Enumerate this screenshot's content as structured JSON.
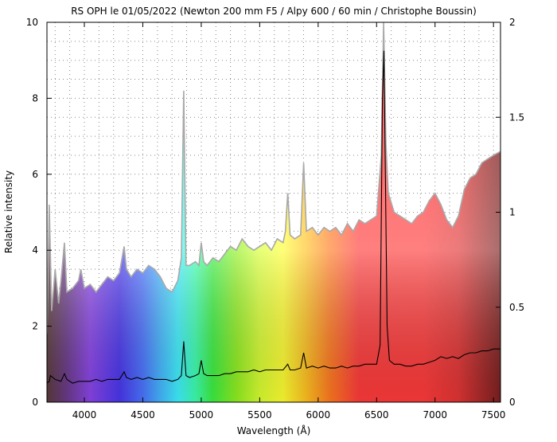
{
  "chart_data": {
    "type": "line",
    "title": "RS OPH le 01/05/2022 (Newton 200 mm F5 / Alpy 600 / 60 min / Christophe Boussin)",
    "xlabel": "Wavelength (Å)",
    "ylabel": "Relative intensity",
    "xlim": [
      3680,
      7560
    ],
    "ylim_left": [
      0,
      10
    ],
    "ylim_right": [
      0,
      2
    ],
    "x_ticks": [
      4000,
      4500,
      5000,
      5500,
      6000,
      6500,
      7000,
      7500
    ],
    "y_ticks_left": [
      0,
      2,
      4,
      6,
      8,
      10
    ],
    "y_ticks_right": [
      0,
      0.5,
      1,
      1.5,
      2
    ],
    "grid": true,
    "background": "rainbow spectrum colored fill under gray curve",
    "series": [
      {
        "color": "#a9a9a9",
        "axis": "left",
        "points": [
          [
            3680,
            1.8
          ],
          [
            3700,
            5.2
          ],
          [
            3720,
            2.4
          ],
          [
            3750,
            3.5
          ],
          [
            3780,
            2.6
          ],
          [
            3800,
            3.2
          ],
          [
            3830,
            4.2
          ],
          [
            3850,
            2.9
          ],
          [
            3900,
            3.0
          ],
          [
            3950,
            3.2
          ],
          [
            3970,
            3.5
          ],
          [
            4000,
            3.0
          ],
          [
            4050,
            3.1
          ],
          [
            4100,
            2.9
          ],
          [
            4150,
            3.1
          ],
          [
            4200,
            3.3
          ],
          [
            4250,
            3.2
          ],
          [
            4300,
            3.4
          ],
          [
            4340,
            4.1
          ],
          [
            4360,
            3.5
          ],
          [
            4400,
            3.3
          ],
          [
            4450,
            3.5
          ],
          [
            4500,
            3.4
          ],
          [
            4550,
            3.6
          ],
          [
            4600,
            3.5
          ],
          [
            4650,
            3.3
          ],
          [
            4700,
            3.0
          ],
          [
            4750,
            2.9
          ],
          [
            4800,
            3.2
          ],
          [
            4830,
            3.8
          ],
          [
            4850,
            8.2
          ],
          [
            4870,
            3.6
          ],
          [
            4900,
            3.6
          ],
          [
            4950,
            3.7
          ],
          [
            4980,
            3.6
          ],
          [
            5000,
            4.2
          ],
          [
            5020,
            3.7
          ],
          [
            5050,
            3.6
          ],
          [
            5100,
            3.8
          ],
          [
            5150,
            3.7
          ],
          [
            5200,
            3.9
          ],
          [
            5250,
            4.1
          ],
          [
            5300,
            4.0
          ],
          [
            5350,
            4.3
          ],
          [
            5400,
            4.1
          ],
          [
            5450,
            4.0
          ],
          [
            5500,
            4.1
          ],
          [
            5550,
            4.2
          ],
          [
            5600,
            4.0
          ],
          [
            5650,
            4.3
          ],
          [
            5700,
            4.2
          ],
          [
            5720,
            4.5
          ],
          [
            5740,
            5.5
          ],
          [
            5760,
            4.4
          ],
          [
            5800,
            4.3
          ],
          [
            5850,
            4.4
          ],
          [
            5876,
            6.3
          ],
          [
            5900,
            4.5
          ],
          [
            5950,
            4.6
          ],
          [
            6000,
            4.4
          ],
          [
            6050,
            4.6
          ],
          [
            6100,
            4.5
          ],
          [
            6150,
            4.6
          ],
          [
            6200,
            4.4
          ],
          [
            6250,
            4.7
          ],
          [
            6300,
            4.5
          ],
          [
            6350,
            4.8
          ],
          [
            6400,
            4.7
          ],
          [
            6450,
            4.8
          ],
          [
            6500,
            4.9
          ],
          [
            6540,
            6.5
          ],
          [
            6560,
            10.0
          ],
          [
            6580,
            6.8
          ],
          [
            6600,
            5.5
          ],
          [
            6650,
            5.0
          ],
          [
            6700,
            4.9
          ],
          [
            6750,
            4.8
          ],
          [
            6800,
            4.7
          ],
          [
            6850,
            4.9
          ],
          [
            6900,
            5.0
          ],
          [
            6950,
            5.3
          ],
          [
            7000,
            5.5
          ],
          [
            7050,
            5.2
          ],
          [
            7100,
            4.8
          ],
          [
            7150,
            4.6
          ],
          [
            7200,
            4.9
          ],
          [
            7250,
            5.6
          ],
          [
            7300,
            5.9
          ],
          [
            7350,
            6.0
          ],
          [
            7400,
            6.3
          ],
          [
            7450,
            6.4
          ],
          [
            7500,
            6.5
          ],
          [
            7560,
            6.6
          ]
        ]
      },
      {
        "color": "#000000",
        "axis": "right",
        "points": [
          [
            3680,
            0.1
          ],
          [
            3700,
            0.11
          ],
          [
            3710,
            0.14
          ],
          [
            3750,
            0.12
          ],
          [
            3800,
            0.11
          ],
          [
            3830,
            0.15
          ],
          [
            3850,
            0.12
          ],
          [
            3900,
            0.1
          ],
          [
            3950,
            0.11
          ],
          [
            4000,
            0.11
          ],
          [
            4050,
            0.11
          ],
          [
            4100,
            0.12
          ],
          [
            4150,
            0.11
          ],
          [
            4200,
            0.12
          ],
          [
            4250,
            0.12
          ],
          [
            4300,
            0.12
          ],
          [
            4340,
            0.16
          ],
          [
            4360,
            0.13
          ],
          [
            4400,
            0.12
          ],
          [
            4450,
            0.13
          ],
          [
            4500,
            0.12
          ],
          [
            4550,
            0.13
          ],
          [
            4600,
            0.12
          ],
          [
            4650,
            0.12
          ],
          [
            4700,
            0.12
          ],
          [
            4750,
            0.11
          ],
          [
            4800,
            0.12
          ],
          [
            4830,
            0.14
          ],
          [
            4850,
            0.32
          ],
          [
            4870,
            0.14
          ],
          [
            4900,
            0.13
          ],
          [
            4950,
            0.14
          ],
          [
            4980,
            0.15
          ],
          [
            5000,
            0.22
          ],
          [
            5020,
            0.15
          ],
          [
            5050,
            0.14
          ],
          [
            5100,
            0.14
          ],
          [
            5150,
            0.14
          ],
          [
            5200,
            0.15
          ],
          [
            5250,
            0.15
          ],
          [
            5300,
            0.16
          ],
          [
            5350,
            0.16
          ],
          [
            5400,
            0.16
          ],
          [
            5450,
            0.17
          ],
          [
            5500,
            0.16
          ],
          [
            5550,
            0.17
          ],
          [
            5600,
            0.17
          ],
          [
            5650,
            0.17
          ],
          [
            5700,
            0.17
          ],
          [
            5740,
            0.2
          ],
          [
            5760,
            0.17
          ],
          [
            5800,
            0.17
          ],
          [
            5850,
            0.18
          ],
          [
            5876,
            0.26
          ],
          [
            5900,
            0.18
          ],
          [
            5950,
            0.19
          ],
          [
            6000,
            0.18
          ],
          [
            6050,
            0.19
          ],
          [
            6100,
            0.18
          ],
          [
            6150,
            0.18
          ],
          [
            6200,
            0.19
          ],
          [
            6250,
            0.18
          ],
          [
            6300,
            0.19
          ],
          [
            6350,
            0.19
          ],
          [
            6400,
            0.2
          ],
          [
            6450,
            0.2
          ],
          [
            6500,
            0.2
          ],
          [
            6530,
            0.3
          ],
          [
            6550,
            1.6
          ],
          [
            6563,
            1.85
          ],
          [
            6575,
            1.2
          ],
          [
            6590,
            0.4
          ],
          [
            6610,
            0.22
          ],
          [
            6650,
            0.2
          ],
          [
            6700,
            0.2
          ],
          [
            6750,
            0.19
          ],
          [
            6800,
            0.19
          ],
          [
            6850,
            0.2
          ],
          [
            6900,
            0.2
          ],
          [
            6950,
            0.21
          ],
          [
            7000,
            0.22
          ],
          [
            7050,
            0.24
          ],
          [
            7100,
            0.23
          ],
          [
            7150,
            0.24
          ],
          [
            7200,
            0.23
          ],
          [
            7250,
            0.25
          ],
          [
            7300,
            0.26
          ],
          [
            7350,
            0.26
          ],
          [
            7400,
            0.27
          ],
          [
            7450,
            0.27
          ],
          [
            7500,
            0.28
          ],
          [
            7560,
            0.28
          ]
        ]
      }
    ]
  }
}
